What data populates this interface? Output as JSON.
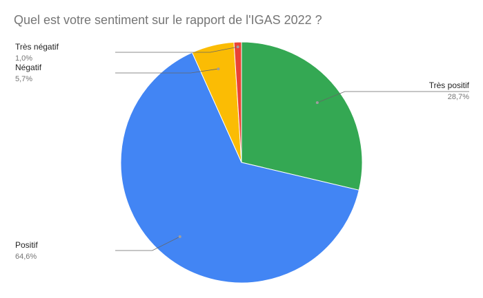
{
  "chart_data": {
    "type": "pie",
    "title": "Quel est votre sentiment sur le rapport de l'IGAS 2022 ?",
    "slices": [
      {
        "label": "Très positif",
        "value": 28.7,
        "value_label": "28,7%",
        "color": "#34a853"
      },
      {
        "label": "Positif",
        "value": 64.6,
        "value_label": "64,6%",
        "color": "#4285f4"
      },
      {
        "label": "Négatif",
        "value": 5.7,
        "value_label": "5,7%",
        "color": "#fbbc04"
      },
      {
        "label": "Très négatif",
        "value": 1.0,
        "value_label": "1,0%",
        "color": "#ea4335"
      }
    ],
    "start_angle_deg": 0,
    "direction": "clockwise",
    "legend": "none"
  }
}
